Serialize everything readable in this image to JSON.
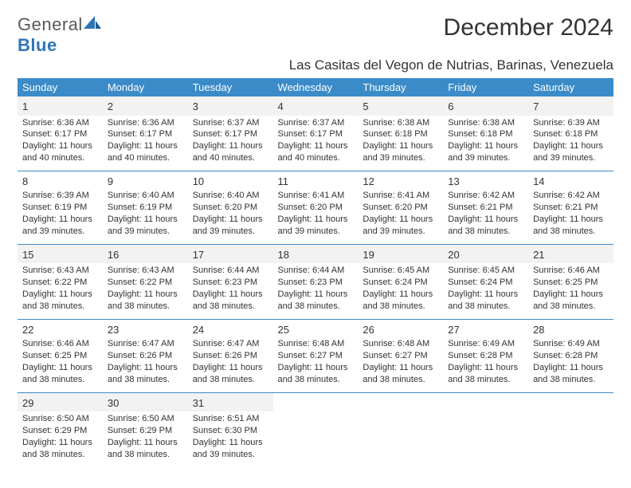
{
  "brand": {
    "part1": "General",
    "part2": "Blue"
  },
  "title": "December 2024",
  "location": "Las Casitas del Vegon de Nutrias, Barinas, Venezuela",
  "colors": {
    "header_bg": "#3b8bc8",
    "header_fg": "#ffffff",
    "border": "#3b8bc8",
    "shade": "#f2f2f2",
    "text": "#333333",
    "logo_gray": "#58595b",
    "logo_blue": "#2e75b6"
  },
  "weekdays": [
    "Sunday",
    "Monday",
    "Tuesday",
    "Wednesday",
    "Thursday",
    "Friday",
    "Saturday"
  ],
  "days": [
    {
      "n": 1,
      "sr": "6:36 AM",
      "ss": "6:17 PM",
      "dl": "11 hours and 40 minutes."
    },
    {
      "n": 2,
      "sr": "6:36 AM",
      "ss": "6:17 PM",
      "dl": "11 hours and 40 minutes."
    },
    {
      "n": 3,
      "sr": "6:37 AM",
      "ss": "6:17 PM",
      "dl": "11 hours and 40 minutes."
    },
    {
      "n": 4,
      "sr": "6:37 AM",
      "ss": "6:17 PM",
      "dl": "11 hours and 40 minutes."
    },
    {
      "n": 5,
      "sr": "6:38 AM",
      "ss": "6:18 PM",
      "dl": "11 hours and 39 minutes."
    },
    {
      "n": 6,
      "sr": "6:38 AM",
      "ss": "6:18 PM",
      "dl": "11 hours and 39 minutes."
    },
    {
      "n": 7,
      "sr": "6:39 AM",
      "ss": "6:18 PM",
      "dl": "11 hours and 39 minutes."
    },
    {
      "n": 8,
      "sr": "6:39 AM",
      "ss": "6:19 PM",
      "dl": "11 hours and 39 minutes."
    },
    {
      "n": 9,
      "sr": "6:40 AM",
      "ss": "6:19 PM",
      "dl": "11 hours and 39 minutes."
    },
    {
      "n": 10,
      "sr": "6:40 AM",
      "ss": "6:20 PM",
      "dl": "11 hours and 39 minutes."
    },
    {
      "n": 11,
      "sr": "6:41 AM",
      "ss": "6:20 PM",
      "dl": "11 hours and 39 minutes."
    },
    {
      "n": 12,
      "sr": "6:41 AM",
      "ss": "6:20 PM",
      "dl": "11 hours and 39 minutes."
    },
    {
      "n": 13,
      "sr": "6:42 AM",
      "ss": "6:21 PM",
      "dl": "11 hours and 38 minutes."
    },
    {
      "n": 14,
      "sr": "6:42 AM",
      "ss": "6:21 PM",
      "dl": "11 hours and 38 minutes."
    },
    {
      "n": 15,
      "sr": "6:43 AM",
      "ss": "6:22 PM",
      "dl": "11 hours and 38 minutes."
    },
    {
      "n": 16,
      "sr": "6:43 AM",
      "ss": "6:22 PM",
      "dl": "11 hours and 38 minutes."
    },
    {
      "n": 17,
      "sr": "6:44 AM",
      "ss": "6:23 PM",
      "dl": "11 hours and 38 minutes."
    },
    {
      "n": 18,
      "sr": "6:44 AM",
      "ss": "6:23 PM",
      "dl": "11 hours and 38 minutes."
    },
    {
      "n": 19,
      "sr": "6:45 AM",
      "ss": "6:24 PM",
      "dl": "11 hours and 38 minutes."
    },
    {
      "n": 20,
      "sr": "6:45 AM",
      "ss": "6:24 PM",
      "dl": "11 hours and 38 minutes."
    },
    {
      "n": 21,
      "sr": "6:46 AM",
      "ss": "6:25 PM",
      "dl": "11 hours and 38 minutes."
    },
    {
      "n": 22,
      "sr": "6:46 AM",
      "ss": "6:25 PM",
      "dl": "11 hours and 38 minutes."
    },
    {
      "n": 23,
      "sr": "6:47 AM",
      "ss": "6:26 PM",
      "dl": "11 hours and 38 minutes."
    },
    {
      "n": 24,
      "sr": "6:47 AM",
      "ss": "6:26 PM",
      "dl": "11 hours and 38 minutes."
    },
    {
      "n": 25,
      "sr": "6:48 AM",
      "ss": "6:27 PM",
      "dl": "11 hours and 38 minutes."
    },
    {
      "n": 26,
      "sr": "6:48 AM",
      "ss": "6:27 PM",
      "dl": "11 hours and 38 minutes."
    },
    {
      "n": 27,
      "sr": "6:49 AM",
      "ss": "6:28 PM",
      "dl": "11 hours and 38 minutes."
    },
    {
      "n": 28,
      "sr": "6:49 AM",
      "ss": "6:28 PM",
      "dl": "11 hours and 38 minutes."
    },
    {
      "n": 29,
      "sr": "6:50 AM",
      "ss": "6:29 PM",
      "dl": "11 hours and 38 minutes."
    },
    {
      "n": 30,
      "sr": "6:50 AM",
      "ss": "6:29 PM",
      "dl": "11 hours and 38 minutes."
    },
    {
      "n": 31,
      "sr": "6:51 AM",
      "ss": "6:30 PM",
      "dl": "11 hours and 39 minutes."
    }
  ],
  "labels": {
    "sunrise": "Sunrise:",
    "sunset": "Sunset:",
    "daylight": "Daylight:"
  },
  "layout": {
    "start_weekday": 0,
    "total_cells": 35,
    "gray_band_rows": [
      0,
      2,
      4
    ]
  }
}
